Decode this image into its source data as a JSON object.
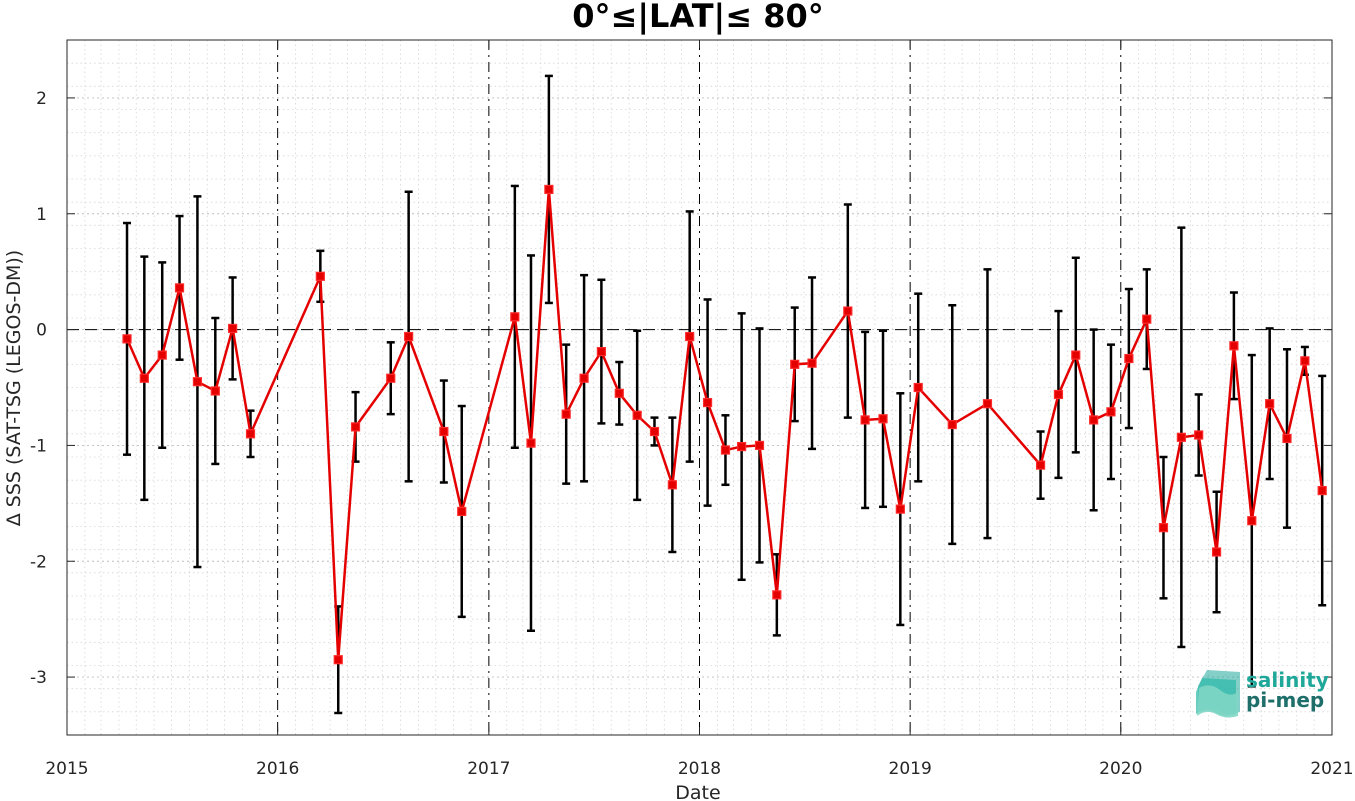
{
  "chart_data": {
    "type": "line",
    "title": "0°≤|LAT|≤ 80°",
    "xlabel": "Date",
    "ylabel": "Δ SSS (SAT-TSG (LEGOS-DM))",
    "xlim": [
      "2015-01-01",
      "2021-01-01"
    ],
    "ylim": [
      -3.5,
      2.5
    ],
    "x_ticks": [
      "2015",
      "2016",
      "2017",
      "2018",
      "2019",
      "2020",
      "2021"
    ],
    "y_ticks": [
      "-3",
      "-2",
      "-1",
      "0",
      "1",
      "2"
    ],
    "grid": true,
    "zero_line": true,
    "year_separators": true,
    "series": [
      {
        "color": "#e50000",
        "marker": "square",
        "x": [
          "2015-04-15",
          "2015-05-15",
          "2015-06-15",
          "2015-07-15",
          "2015-08-15",
          "2015-09-15",
          "2015-10-15",
          "2015-11-15",
          "2016-03-15",
          "2016-04-15",
          "2016-05-15",
          "2016-07-15",
          "2016-08-15",
          "2016-10-15",
          "2016-11-15",
          "2017-02-15",
          "2017-03-15",
          "2017-04-15",
          "2017-05-15",
          "2017-06-15",
          "2017-07-15",
          "2017-08-15",
          "2017-09-15",
          "2017-10-15",
          "2017-11-15",
          "2017-12-15",
          "2018-01-15",
          "2018-02-15",
          "2018-03-15",
          "2018-04-15",
          "2018-05-15",
          "2018-06-15",
          "2018-07-15",
          "2018-09-15",
          "2018-10-15",
          "2018-11-15",
          "2018-12-15",
          "2019-01-15",
          "2019-03-15",
          "2019-05-15",
          "2019-08-15",
          "2019-09-15",
          "2019-10-15",
          "2019-11-15",
          "2019-12-15",
          "2020-01-15",
          "2020-02-15",
          "2020-03-15",
          "2020-04-15",
          "2020-05-15",
          "2020-06-15",
          "2020-07-15",
          "2020-08-15",
          "2020-09-15",
          "2020-10-15",
          "2020-11-15",
          "2020-12-15"
        ],
        "y": [
          -0.08,
          -0.42,
          -0.22,
          0.36,
          -0.45,
          -0.53,
          0.01,
          -0.9,
          0.46,
          -2.85,
          -0.84,
          -0.42,
          -0.06,
          -0.88,
          -1.57,
          0.11,
          -0.98,
          1.21,
          -0.73,
          -0.42,
          -0.19,
          -0.55,
          -0.74,
          -0.88,
          -1.34,
          -0.06,
          -0.63,
          -1.04,
          -1.01,
          -1.0,
          -2.29,
          -0.3,
          -0.29,
          0.16,
          -0.78,
          -0.77,
          -1.55,
          -0.5,
          -0.82,
          -0.64,
          -1.17,
          -0.56,
          -0.22,
          -0.78,
          -0.71,
          -0.25,
          0.09,
          -1.71,
          -0.93,
          -0.91,
          -1.92,
          -0.14,
          -1.65,
          -0.64,
          -0.94,
          -0.27,
          -1.39
        ],
        "err": [
          1.0,
          1.05,
          0.8,
          0.62,
          1.6,
          0.63,
          0.44,
          0.2,
          0.22,
          0.46,
          0.3,
          0.31,
          1.25,
          0.44,
          0.91,
          1.13,
          1.62,
          0.98,
          0.6,
          0.89,
          0.62,
          0.27,
          0.73,
          0.12,
          0.58,
          1.08,
          0.89,
          0.3,
          1.15,
          1.01,
          0.35,
          0.49,
          0.74,
          0.92,
          0.76,
          0.76,
          1.0,
          0.81,
          1.03,
          1.16,
          0.29,
          0.72,
          0.84,
          0.78,
          0.58,
          0.6,
          0.43,
          0.61,
          1.81,
          0.35,
          0.52,
          0.46,
          1.43,
          0.65,
          0.77,
          0.12,
          0.99
        ]
      }
    ]
  },
  "logo": {
    "line1": "salinity",
    "line2": "pi-mep"
  },
  "colors": {
    "line": "#e50000",
    "errorbar": "#000000",
    "logo_teal": "#1fa89a",
    "logo_dark": "#1e6f6a"
  }
}
